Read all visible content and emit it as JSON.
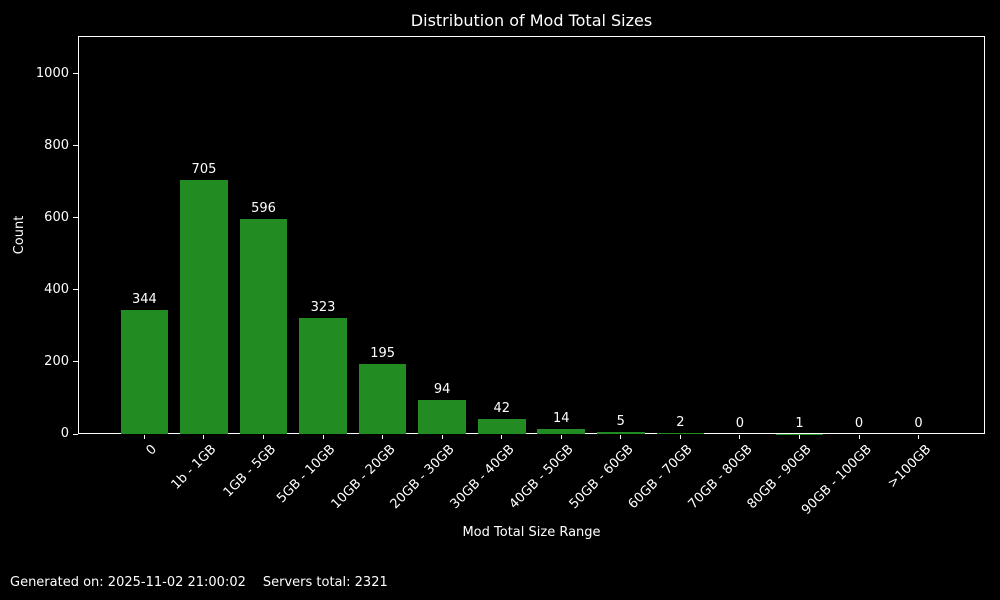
{
  "chart_data": {
    "type": "bar",
    "title": "Distribution of Mod Total Sizes",
    "xlabel": "Mod Total Size Range",
    "ylabel": "Count",
    "categories": [
      "0",
      "1b - 1GB",
      "1GB - 5GB",
      "5GB - 10GB",
      "10GB - 20GB",
      "20GB - 30GB",
      "30GB - 40GB",
      "40GB - 50GB",
      "50GB - 60GB",
      "60GB - 70GB",
      "70GB - 80GB",
      "80GB - 90GB",
      "90GB - 100GB",
      ">100GB"
    ],
    "values": [
      344,
      705,
      596,
      323,
      195,
      94,
      42,
      14,
      5,
      2,
      0,
      1,
      0,
      0
    ],
    "ylim": [
      0,
      1105
    ],
    "yticks": [
      0,
      200,
      400,
      600,
      800,
      1000
    ],
    "bar_color": "#228B22",
    "background_color": "#000000",
    "text_color": "#ffffff",
    "grid": false,
    "legend": null,
    "x_tick_rotation": 45
  },
  "footer": {
    "generated_label": "Generated on: 2025-11-02 21:00:02",
    "servers_label": "Servers total: 2321"
  }
}
